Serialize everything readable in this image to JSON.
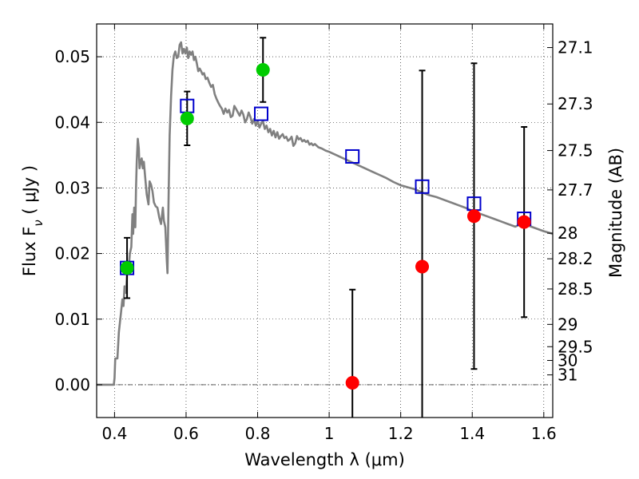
{
  "chart_data": {
    "type": "scatter",
    "xlabel": "Wavelength  λ (μm)",
    "ylabel": "Flux  F",
    "ylabel_sub": "ν",
    "ylabel_unit": "  ( μJy )",
    "y2label": "Magnitude (AB)",
    "xlim": [
      0.35,
      1.625
    ],
    "ylim": [
      -0.005,
      0.055
    ],
    "grid": true,
    "x_ticks": [
      0.4,
      0.6,
      0.8,
      1.0,
      1.2,
      1.4,
      1.6
    ],
    "x_tick_labels": [
      "0.4",
      "0.6",
      "0.8",
      "1",
      "1.2",
      "1.4",
      "1.6"
    ],
    "y_ticks": [
      0.0,
      0.01,
      0.02,
      0.03,
      0.04,
      0.05
    ],
    "y_tick_labels": [
      "0.00",
      "0.01",
      "0.02",
      "0.03",
      "0.04",
      "0.05"
    ],
    "y2_ticks": [
      {
        "label": "27.1",
        "flux": 0.0514
      },
      {
        "label": "27.3",
        "flux": 0.0428
      },
      {
        "label": "27.5",
        "flux": 0.0357
      },
      {
        "label": "27.7",
        "flux": 0.0297
      },
      {
        "label": "28",
        "flux": 0.0231
      },
      {
        "label": "28.2",
        "flux": 0.0192
      },
      {
        "label": "28.5",
        "flux": 0.0146
      },
      {
        "label": "29",
        "flux": 0.0092
      },
      {
        "label": "29.5",
        "flux": 0.0058
      },
      {
        "label": "30",
        "flux": 0.0037
      },
      {
        "label": "31",
        "flux": 0.0015
      }
    ],
    "series": [
      {
        "color": "#808080",
        "style": "line",
        "points": [
          [
            0.35,
            0.0
          ],
          [
            0.398,
            0.0
          ],
          [
            0.4,
            0.001
          ],
          [
            0.402,
            0.004
          ],
          [
            0.408,
            0.004
          ],
          [
            0.412,
            0.008
          ],
          [
            0.418,
            0.011
          ],
          [
            0.422,
            0.013
          ],
          [
            0.425,
            0.012
          ],
          [
            0.428,
            0.015
          ],
          [
            0.432,
            0.014
          ],
          [
            0.435,
            0.017
          ],
          [
            0.44,
            0.018
          ],
          [
            0.443,
            0.02
          ],
          [
            0.447,
            0.021
          ],
          [
            0.45,
            0.026
          ],
          [
            0.452,
            0.023
          ],
          [
            0.455,
            0.027
          ],
          [
            0.458,
            0.024
          ],
          [
            0.46,
            0.03
          ],
          [
            0.462,
            0.034
          ],
          [
            0.465,
            0.0375
          ],
          [
            0.468,
            0.036
          ],
          [
            0.47,
            0.033
          ],
          [
            0.473,
            0.034
          ],
          [
            0.476,
            0.0345
          ],
          [
            0.479,
            0.033
          ],
          [
            0.482,
            0.034
          ],
          [
            0.485,
            0.032
          ],
          [
            0.49,
            0.029
          ],
          [
            0.495,
            0.0275
          ],
          [
            0.498,
            0.031
          ],
          [
            0.502,
            0.0305
          ],
          [
            0.506,
            0.0295
          ],
          [
            0.51,
            0.0278
          ],
          [
            0.515,
            0.0272
          ],
          [
            0.52,
            0.027
          ],
          [
            0.525,
            0.0255
          ],
          [
            0.53,
            0.0245
          ],
          [
            0.535,
            0.027
          ],
          [
            0.538,
            0.025
          ],
          [
            0.542,
            0.024
          ],
          [
            0.546,
            0.019
          ],
          [
            0.548,
            0.017
          ],
          [
            0.551,
            0.028
          ],
          [
            0.554,
            0.038
          ],
          [
            0.558,
            0.044
          ],
          [
            0.562,
            0.048
          ],
          [
            0.566,
            0.0502
          ],
          [
            0.57,
            0.0508
          ],
          [
            0.574,
            0.0498
          ],
          [
            0.578,
            0.05
          ],
          [
            0.582,
            0.0518
          ],
          [
            0.586,
            0.0522
          ],
          [
            0.59,
            0.0505
          ],
          [
            0.594,
            0.0512
          ],
          [
            0.598,
            0.0505
          ],
          [
            0.602,
            0.0514
          ],
          [
            0.606,
            0.0498
          ],
          [
            0.61,
            0.0508
          ],
          [
            0.614,
            0.0503
          ],
          [
            0.618,
            0.0508
          ],
          [
            0.622,
            0.0495
          ],
          [
            0.626,
            0.05
          ],
          [
            0.63,
            0.049
          ],
          [
            0.634,
            0.0478
          ],
          [
            0.638,
            0.0482
          ],
          [
            0.642,
            0.0478
          ],
          [
            0.646,
            0.0473
          ],
          [
            0.65,
            0.0475
          ],
          [
            0.655,
            0.0466
          ],
          [
            0.66,
            0.0468
          ],
          [
            0.665,
            0.046
          ],
          [
            0.67,
            0.0454
          ],
          [
            0.675,
            0.0457
          ],
          [
            0.68,
            0.0443
          ],
          [
            0.685,
            0.0436
          ],
          [
            0.69,
            0.043
          ],
          [
            0.695,
            0.0425
          ],
          [
            0.7,
            0.0421
          ],
          [
            0.705,
            0.0413
          ],
          [
            0.71,
            0.0421
          ],
          [
            0.715,
            0.0415
          ],
          [
            0.72,
            0.0419
          ],
          [
            0.725,
            0.0408
          ],
          [
            0.73,
            0.041
          ],
          [
            0.735,
            0.0425
          ],
          [
            0.74,
            0.042
          ],
          [
            0.745,
            0.0415
          ],
          [
            0.75,
            0.041
          ],
          [
            0.755,
            0.0418
          ],
          [
            0.76,
            0.0412
          ],
          [
            0.765,
            0.04
          ],
          [
            0.77,
            0.0405
          ],
          [
            0.775,
            0.0415
          ],
          [
            0.78,
            0.0408
          ],
          [
            0.785,
            0.0398
          ],
          [
            0.79,
            0.0405
          ],
          [
            0.795,
            0.0395
          ],
          [
            0.8,
            0.0402
          ],
          [
            0.805,
            0.0392
          ],
          [
            0.81,
            0.0398
          ],
          [
            0.815,
            0.0402
          ],
          [
            0.82,
            0.039
          ],
          [
            0.825,
            0.0395
          ],
          [
            0.83,
            0.0385
          ],
          [
            0.835,
            0.039
          ],
          [
            0.84,
            0.038
          ],
          [
            0.845,
            0.0387
          ],
          [
            0.85,
            0.0377
          ],
          [
            0.855,
            0.0385
          ],
          [
            0.86,
            0.0375
          ],
          [
            0.865,
            0.0379
          ],
          [
            0.87,
            0.0382
          ],
          [
            0.875,
            0.0376
          ],
          [
            0.88,
            0.0378
          ],
          [
            0.885,
            0.0372
          ],
          [
            0.89,
            0.0374
          ],
          [
            0.895,
            0.0378
          ],
          [
            0.9,
            0.0364
          ],
          [
            0.905,
            0.0368
          ],
          [
            0.91,
            0.0379
          ],
          [
            0.915,
            0.0374
          ],
          [
            0.92,
            0.0376
          ],
          [
            0.925,
            0.0371
          ],
          [
            0.93,
            0.0373
          ],
          [
            0.935,
            0.037
          ],
          [
            0.94,
            0.0372
          ],
          [
            0.945,
            0.0366
          ],
          [
            0.95,
            0.0368
          ],
          [
            0.955,
            0.0365
          ],
          [
            0.96,
            0.0367
          ],
          [
            0.97,
            0.0362
          ],
          [
            0.98,
            0.036
          ],
          [
            0.99,
            0.0357
          ],
          [
            1.0,
            0.0355
          ],
          [
            1.02,
            0.035
          ],
          [
            1.04,
            0.0345
          ],
          [
            1.06,
            0.034
          ],
          [
            1.08,
            0.0335
          ],
          [
            1.1,
            0.033
          ],
          [
            1.12,
            0.0325
          ],
          [
            1.14,
            0.032
          ],
          [
            1.16,
            0.0315
          ],
          [
            1.18,
            0.0309
          ],
          [
            1.2,
            0.0304
          ],
          [
            1.22,
            0.0301
          ],
          [
            1.24,
            0.0298
          ],
          [
            1.26,
            0.0293
          ],
          [
            1.28,
            0.0289
          ],
          [
            1.3,
            0.0286
          ],
          [
            1.32,
            0.0282
          ],
          [
            1.34,
            0.0278
          ],
          [
            1.36,
            0.0274
          ],
          [
            1.38,
            0.027
          ],
          [
            1.4,
            0.0265
          ],
          [
            1.42,
            0.0261
          ],
          [
            1.44,
            0.0257
          ],
          [
            1.46,
            0.0253
          ],
          [
            1.48,
            0.0249
          ],
          [
            1.5,
            0.0245
          ],
          [
            1.52,
            0.0241
          ],
          [
            1.54,
            0.0246
          ],
          [
            1.56,
            0.0242
          ],
          [
            1.58,
            0.0238
          ],
          [
            1.6,
            0.0234
          ],
          [
            1.625,
            0.023
          ]
        ]
      },
      {
        "color": "#0000cc",
        "style": "open-square",
        "x": [
          0.435,
          0.603,
          0.81,
          1.065,
          1.26,
          1.405,
          1.545
        ],
        "y": [
          0.0178,
          0.0425,
          0.0413,
          0.0348,
          0.0302,
          0.0276,
          0.0253
        ]
      },
      {
        "color": "#00cc00",
        "style": "filled-circle",
        "x": [
          0.435,
          0.603,
          0.815
        ],
        "y": [
          0.0178,
          0.0406,
          0.048
        ],
        "yerr": [
          0.0046,
          0.0041,
          0.0049
        ]
      },
      {
        "color": "#ff0000",
        "style": "filled-circle",
        "x": [
          1.065,
          1.26,
          1.405,
          1.545
        ],
        "y": [
          0.0003,
          0.018,
          0.0257,
          0.0248
        ],
        "yerr": [
          0.0142,
          0.0299,
          0.0233,
          0.0145
        ]
      }
    ]
  }
}
